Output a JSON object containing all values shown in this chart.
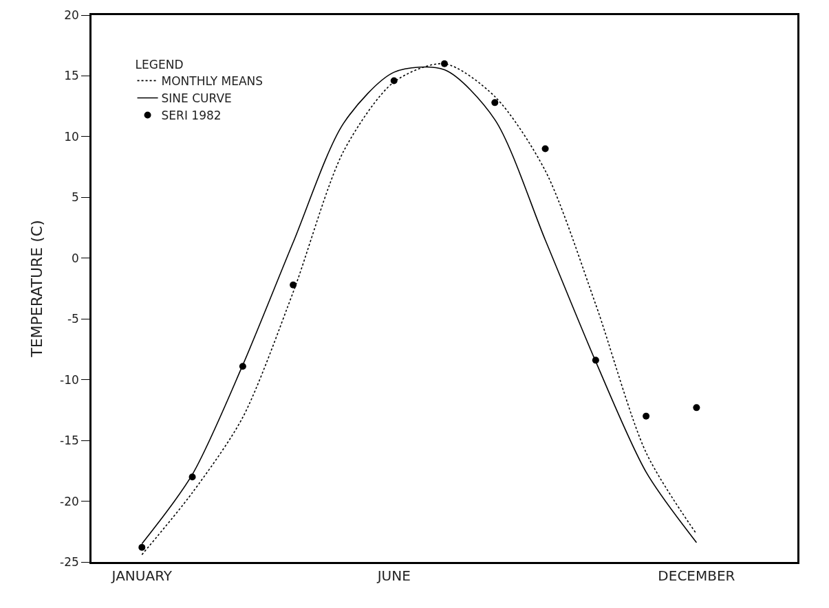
{
  "chart_data": {
    "type": "line",
    "ylabel": "TEMPERATURE (C)",
    "legend_title": "LEGEND",
    "legend": "top left",
    "categories": [
      "JANUARY",
      null,
      null,
      null,
      null,
      "JUNE",
      null,
      null,
      null,
      null,
      null,
      "DECEMBER"
    ],
    "ylim": [
      -25,
      20
    ],
    "yticks": [
      -25,
      -20,
      -15,
      -10,
      -5,
      0,
      5,
      10,
      15,
      20
    ],
    "series": [
      {
        "name": "MONTHLY MEANS",
        "color": "#000000",
        "line_style": "dotted",
        "marker": "none",
        "values": [
          -24.4,
          -19.3,
          -13.1,
          -2.8,
          8.8,
          14.5,
          16.0,
          13.3,
          7.2,
          -3.8,
          -16.0,
          -22.7
        ]
      },
      {
        "name": "SINE CURVE",
        "color": "#000000",
        "line_style": "solid",
        "marker": "none",
        "values": [
          -23.5,
          -17.8,
          -8.8,
          1.3,
          11.1,
          15.3,
          15.5,
          11.4,
          1.5,
          -8.5,
          -17.6,
          -23.4
        ]
      },
      {
        "name": "SERI 1982",
        "type": "scatter",
        "color": "#000000",
        "marker": "circle",
        "values": [
          -23.8,
          -18.0,
          -8.9,
          -2.2,
          null,
          14.6,
          16.0,
          12.8,
          9.0,
          -8.4,
          -13.0,
          -12.3
        ]
      }
    ]
  }
}
